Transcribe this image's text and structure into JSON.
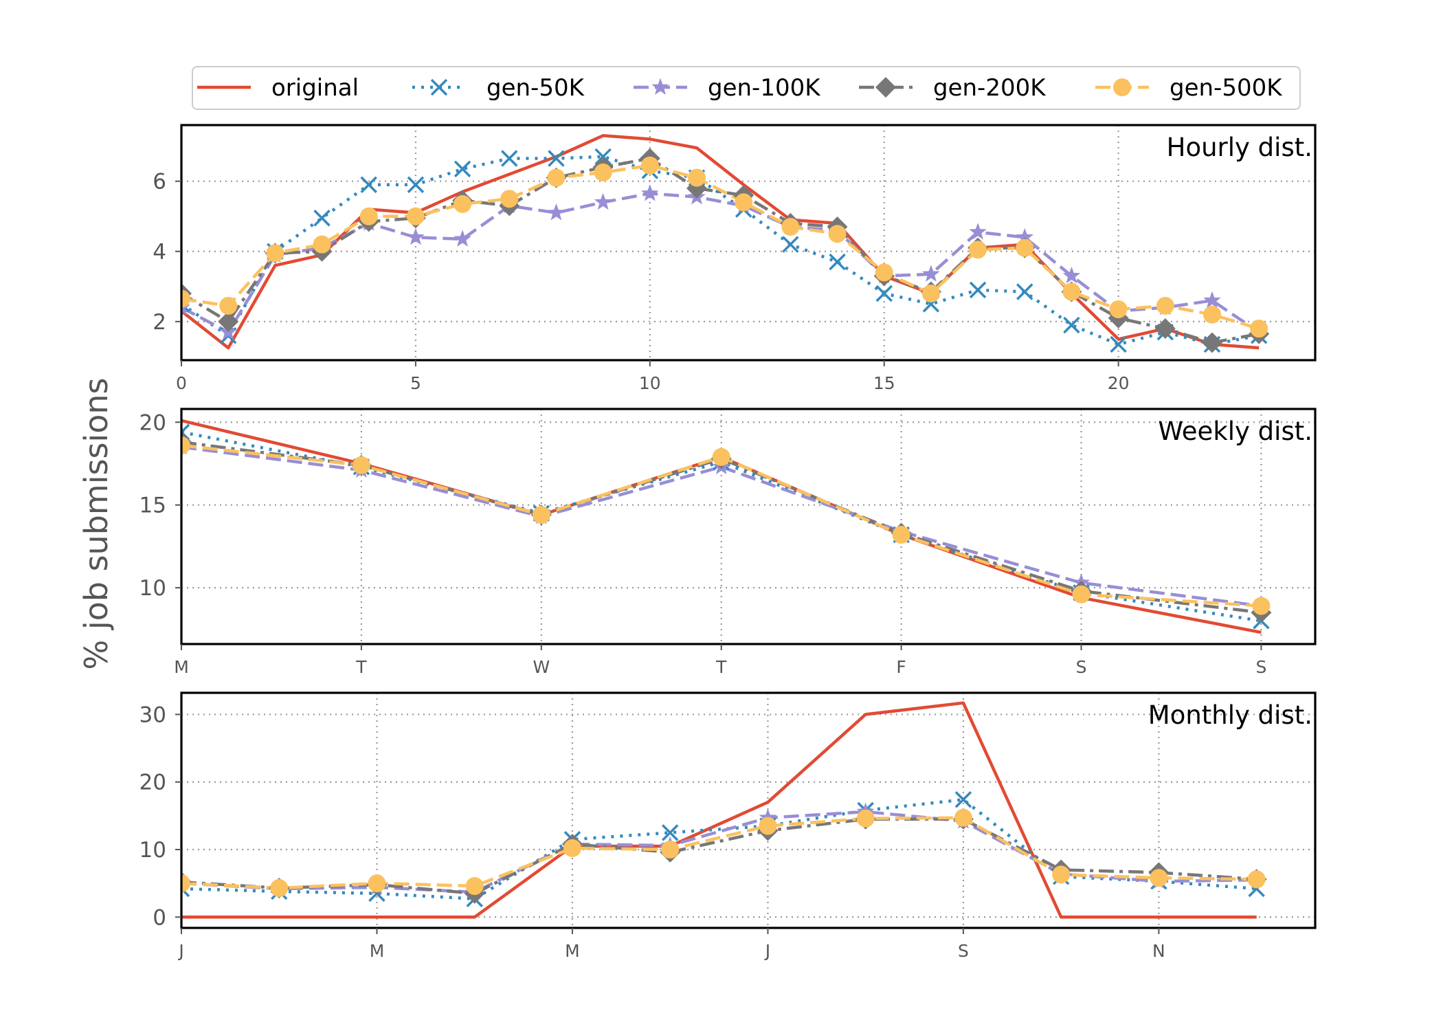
{
  "chart_data": {
    "type": "line",
    "ylabel": "% job submissions",
    "legend": [
      {
        "name": "original",
        "color": "#e24a33",
        "dash": "solid",
        "marker": "none"
      },
      {
        "name": "gen-50K",
        "color": "#348abd",
        "dash": "dotted",
        "marker": "x"
      },
      {
        "name": "gen-100K",
        "color": "#988ed5",
        "dash": "dashed",
        "marker": "star"
      },
      {
        "name": "gen-200K",
        "color": "#777777",
        "dash": "dashdot",
        "marker": "diamond"
      },
      {
        "name": "gen-500K",
        "color": "#fbc15e",
        "dash": "dashed",
        "marker": "circle"
      }
    ],
    "panels": [
      {
        "title": "Hourly dist.",
        "xlim": [
          0,
          24.2
        ],
        "ylim": [
          0.9,
          7.6
        ],
        "xticks": [
          {
            "v": 0,
            "label": "0"
          },
          {
            "v": 5,
            "label": "5"
          },
          {
            "v": 10,
            "label": "10"
          },
          {
            "v": 15,
            "label": "15"
          },
          {
            "v": 20,
            "label": "20"
          }
        ],
        "yticks": [
          {
            "v": 2,
            "label": "2"
          },
          {
            "v": 4,
            "label": "4"
          },
          {
            "v": 6,
            "label": "6"
          }
        ],
        "x": [
          0,
          1,
          2,
          3,
          4,
          5,
          6,
          7,
          8,
          9,
          10,
          11,
          12,
          13,
          14,
          15,
          16,
          17,
          18,
          19,
          20,
          21,
          22,
          23
        ],
        "series": [
          {
            "name": "original",
            "values": [
              2.3,
              1.25,
              3.6,
              3.9,
              5.2,
              5.1,
              5.7,
              6.2,
              6.7,
              7.3,
              7.2,
              6.95,
              5.9,
              4.9,
              4.8,
              3.3,
              2.8,
              4.1,
              4.2,
              2.8,
              1.5,
              1.8,
              1.35,
              1.25
            ]
          },
          {
            "name": "gen-50K",
            "values": [
              2.5,
              1.6,
              4.0,
              4.95,
              5.9,
              5.9,
              6.35,
              6.65,
              6.65,
              6.7,
              6.3,
              6.1,
              5.2,
              4.2,
              3.7,
              2.8,
              2.5,
              2.9,
              2.85,
              1.9,
              1.35,
              1.7,
              1.35,
              1.6
            ]
          },
          {
            "name": "gen-100K",
            "values": [
              2.4,
              1.7,
              3.9,
              4.1,
              4.8,
              4.4,
              4.35,
              5.3,
              5.1,
              5.4,
              5.65,
              5.55,
              5.3,
              4.7,
              4.6,
              3.3,
              3.35,
              4.55,
              4.4,
              3.3,
              2.3,
              2.4,
              2.6,
              1.7
            ]
          },
          {
            "name": "gen-200K",
            "values": [
              2.8,
              2.0,
              3.95,
              4.0,
              4.85,
              4.95,
              5.45,
              5.3,
              6.1,
              6.4,
              6.65,
              5.8,
              5.6,
              4.8,
              4.7,
              3.3,
              2.85,
              4.1,
              4.1,
              2.85,
              2.1,
              1.8,
              1.4,
              1.65
            ]
          },
          {
            "name": "gen-500K",
            "values": [
              2.65,
              2.45,
              3.95,
              4.2,
              5.0,
              5.0,
              5.35,
              5.5,
              6.1,
              6.25,
              6.45,
              6.1,
              5.4,
              4.7,
              4.5,
              3.4,
              2.8,
              4.05,
              4.1,
              2.85,
              2.35,
              2.45,
              2.2,
              1.8
            ]
          }
        ]
      },
      {
        "title": "Weekly dist.",
        "xlim": [
          0,
          6.3
        ],
        "ylim": [
          6.6,
          20.8
        ],
        "xticks": [
          {
            "v": 0,
            "label": "M"
          },
          {
            "v": 1,
            "label": "T"
          },
          {
            "v": 2,
            "label": "W"
          },
          {
            "v": 3,
            "label": "T"
          },
          {
            "v": 4,
            "label": "F"
          },
          {
            "v": 5,
            "label": "S"
          },
          {
            "v": 6,
            "label": "S"
          }
        ],
        "yticks": [
          {
            "v": 10,
            "label": "10"
          },
          {
            "v": 15,
            "label": "15"
          },
          {
            "v": 20,
            "label": "20"
          }
        ],
        "x": [
          0,
          1,
          2,
          3,
          4,
          5,
          6
        ],
        "series": [
          {
            "name": "original",
            "values": [
              20.1,
              17.5,
              14.4,
              17.9,
              13.2,
              9.4,
              7.3
            ]
          },
          {
            "name": "gen-50K",
            "values": [
              19.4,
              17.3,
              14.5,
              17.6,
              13.2,
              9.7,
              8.0
            ]
          },
          {
            "name": "gen-100K",
            "values": [
              18.5,
              17.1,
              14.3,
              17.3,
              13.4,
              10.3,
              8.9
            ]
          },
          {
            "name": "gen-200K",
            "values": [
              18.8,
              17.4,
              14.4,
              17.8,
              13.3,
              9.8,
              8.5
            ]
          },
          {
            "name": "gen-500K",
            "values": [
              18.6,
              17.4,
              14.4,
              17.9,
              13.2,
              9.6,
              8.9
            ]
          }
        ]
      },
      {
        "title": "Monthly dist.",
        "xlim": [
          0,
          11.6
        ],
        "ylim": [
          -1.6,
          33.2
        ],
        "xticks": [
          {
            "v": 0,
            "label": "J"
          },
          {
            "v": 2,
            "label": "M"
          },
          {
            "v": 4,
            "label": "M"
          },
          {
            "v": 6,
            "label": "J"
          },
          {
            "v": 8,
            "label": "S"
          },
          {
            "v": 10,
            "label": "N"
          }
        ],
        "yticks": [
          {
            "v": 0,
            "label": "0"
          },
          {
            "v": 10,
            "label": "10"
          },
          {
            "v": 20,
            "label": "20"
          },
          {
            "v": 30,
            "label": "30"
          }
        ],
        "x": [
          0,
          1,
          2,
          3,
          4,
          5,
          6,
          7,
          8,
          9,
          10,
          11
        ],
        "series": [
          {
            "name": "original",
            "values": [
              0,
              0,
              0,
              0,
              10.5,
              10.5,
              17.0,
              30.0,
              31.7,
              0,
              0,
              0
            ]
          },
          {
            "name": "gen-50K",
            "values": [
              4.2,
              3.8,
              3.5,
              2.7,
              11.5,
              12.5,
              13.5,
              15.8,
              17.4,
              6.0,
              5.3,
              4.2
            ]
          },
          {
            "name": "gen-100K",
            "values": [
              5.0,
              4.2,
              4.4,
              3.7,
              10.8,
              10.6,
              14.7,
              15.6,
              14.2,
              6.4,
              5.3,
              5.5
            ]
          },
          {
            "name": "gen-200K",
            "values": [
              5.2,
              4.3,
              4.8,
              3.5,
              10.8,
              9.6,
              12.8,
              14.5,
              14.5,
              7.0,
              6.6,
              5.6
            ]
          },
          {
            "name": "gen-500K",
            "values": [
              5.0,
              4.3,
              5.0,
              4.6,
              10.2,
              10.0,
              13.5,
              14.6,
              14.7,
              6.3,
              5.8,
              5.6
            ]
          }
        ]
      }
    ]
  }
}
